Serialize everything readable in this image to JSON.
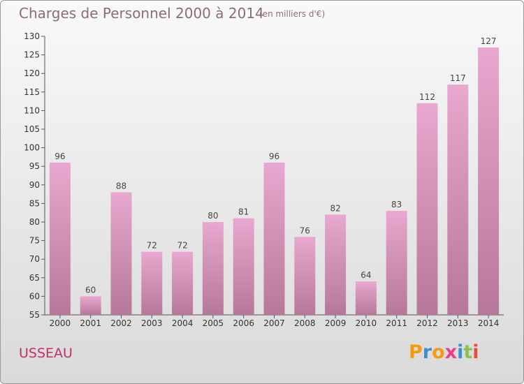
{
  "title": "Charges de Personnel 2000 à 2014",
  "unit_note": "(en milliers d'€)",
  "commune": "USSEAU",
  "logo": {
    "letters": [
      "P",
      "r",
      "o",
      "x",
      "i",
      "t",
      "i"
    ],
    "colors": [
      "#f39c12",
      "#3b8fd1",
      "#f39c12",
      "#e83e8c",
      "#3b8fd1",
      "#8bc34a",
      "#e74c3c"
    ]
  },
  "colors": {
    "bar_top": "#e8a8cf",
    "bar_bottom": "#b6789a",
    "commune": "#c2306a",
    "title": "#8d6a7c"
  },
  "chart_data": {
    "type": "bar",
    "categories": [
      "2000",
      "2001",
      "2002",
      "2003",
      "2004",
      "2005",
      "2006",
      "2007",
      "2008",
      "2009",
      "2010",
      "2011",
      "2012",
      "2013",
      "2014"
    ],
    "values": [
      96,
      60,
      88,
      72,
      72,
      80,
      81,
      96,
      76,
      82,
      64,
      83,
      112,
      117,
      127
    ],
    "ylim": [
      55,
      130
    ],
    "yticks": [
      55,
      60,
      65,
      70,
      75,
      80,
      85,
      90,
      95,
      100,
      105,
      110,
      115,
      120,
      125,
      130
    ],
    "grid": false
  }
}
